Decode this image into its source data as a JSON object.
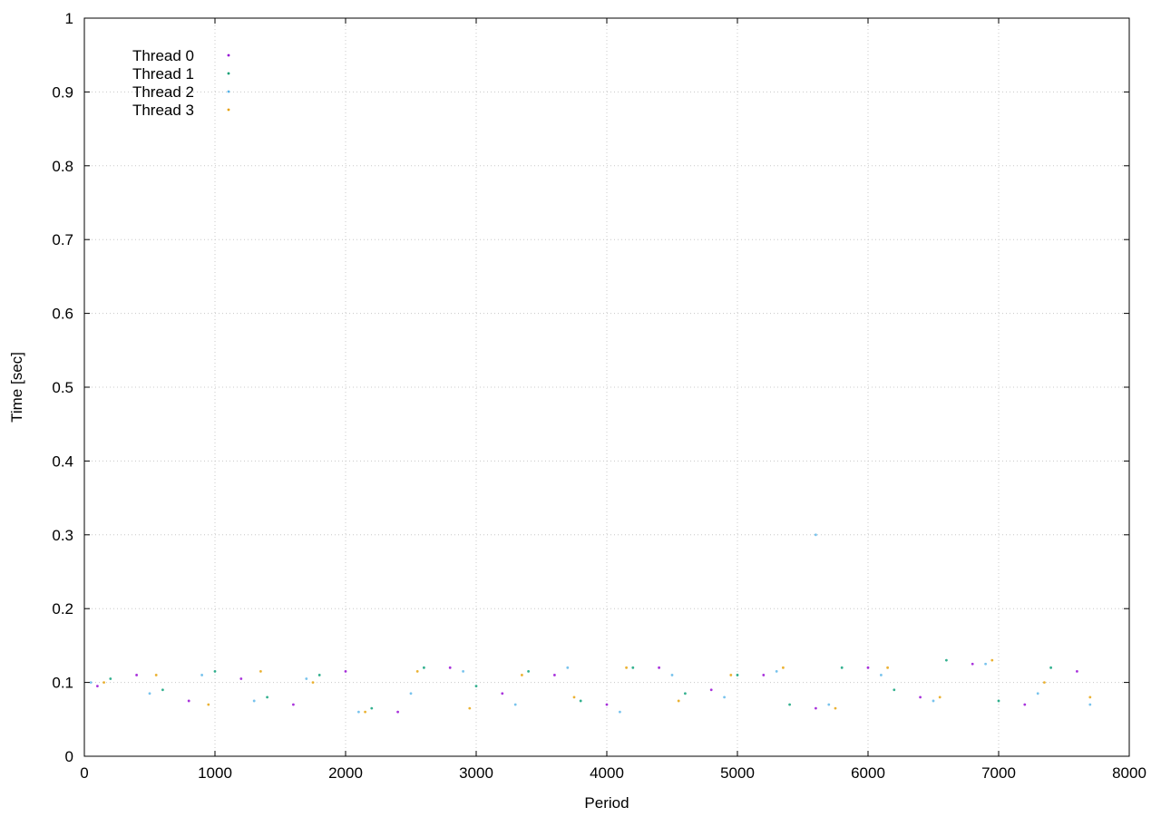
{
  "chart_data": {
    "type": "scatter",
    "title": "",
    "xlabel": "Period",
    "ylabel": "Time [sec]",
    "xlim": [
      0,
      8000
    ],
    "ylim": [
      0,
      1
    ],
    "x_ticks": [
      "0",
      "1000",
      "2000",
      "3000",
      "4000",
      "5000",
      "6000",
      "7000",
      "8000"
    ],
    "y_ticks": [
      "0",
      "0.1",
      "0.2",
      "0.3",
      "0.4",
      "0.5",
      "0.6",
      "0.7",
      "0.8",
      "0.9",
      "1"
    ],
    "grid": true,
    "legend_position": "top-left",
    "series": [
      {
        "name": "Thread 0",
        "color": "#9400d3",
        "points": [
          [
            100,
            0.095
          ],
          [
            400,
            0.11
          ],
          [
            800,
            0.075
          ],
          [
            1200,
            0.105
          ],
          [
            1600,
            0.07
          ],
          [
            2000,
            0.115
          ],
          [
            2400,
            0.06
          ],
          [
            2800,
            0.12
          ],
          [
            3200,
            0.085
          ],
          [
            3600,
            0.11
          ],
          [
            4000,
            0.07
          ],
          [
            4400,
            0.12
          ],
          [
            4800,
            0.09
          ],
          [
            5200,
            0.11
          ],
          [
            5600,
            0.065
          ],
          [
            6000,
            0.12
          ],
          [
            6400,
            0.08
          ],
          [
            6800,
            0.125
          ],
          [
            7200,
            0.07
          ],
          [
            7600,
            0.115
          ]
        ]
      },
      {
        "name": "Thread 1",
        "color": "#009e73",
        "points": [
          [
            200,
            0.105
          ],
          [
            600,
            0.09
          ],
          [
            1000,
            0.115
          ],
          [
            1400,
            0.08
          ],
          [
            1800,
            0.11
          ],
          [
            2200,
            0.065
          ],
          [
            2600,
            0.12
          ],
          [
            3000,
            0.095
          ],
          [
            3400,
            0.115
          ],
          [
            3800,
            0.075
          ],
          [
            4200,
            0.12
          ],
          [
            4600,
            0.085
          ],
          [
            5000,
            0.11
          ],
          [
            5400,
            0.07
          ],
          [
            5800,
            0.12
          ],
          [
            6200,
            0.09
          ],
          [
            6600,
            0.13
          ],
          [
            7000,
            0.075
          ],
          [
            7400,
            0.12
          ]
        ]
      },
      {
        "name": "Thread 2",
        "color": "#56b4e9",
        "points": [
          [
            50,
            0.1
          ],
          [
            500,
            0.085
          ],
          [
            900,
            0.11
          ],
          [
            1300,
            0.075
          ],
          [
            1700,
            0.105
          ],
          [
            2100,
            0.06
          ],
          [
            2500,
            0.085
          ],
          [
            2900,
            0.115
          ],
          [
            3300,
            0.07
          ],
          [
            3700,
            0.12
          ],
          [
            4100,
            0.06
          ],
          [
            4500,
            0.11
          ],
          [
            4900,
            0.08
          ],
          [
            5300,
            0.115
          ],
          [
            5600,
            0.3
          ],
          [
            5700,
            0.07
          ],
          [
            6100,
            0.11
          ],
          [
            6500,
            0.075
          ],
          [
            6900,
            0.125
          ],
          [
            7300,
            0.085
          ],
          [
            7700,
            0.07
          ]
        ]
      },
      {
        "name": "Thread 3",
        "color": "#e69f00",
        "points": [
          [
            150,
            0.1
          ],
          [
            550,
            0.11
          ],
          [
            950,
            0.07
          ],
          [
            1350,
            0.115
          ],
          [
            1750,
            0.1
          ],
          [
            2150,
            0.06
          ],
          [
            2550,
            0.115
          ],
          [
            2950,
            0.065
          ],
          [
            3350,
            0.11
          ],
          [
            3750,
            0.08
          ],
          [
            4150,
            0.12
          ],
          [
            4550,
            0.075
          ],
          [
            4950,
            0.11
          ],
          [
            5350,
            0.12
          ],
          [
            5750,
            0.065
          ],
          [
            6150,
            0.12
          ],
          [
            6550,
            0.08
          ],
          [
            6950,
            0.13
          ],
          [
            7350,
            0.1
          ],
          [
            7700,
            0.08
          ]
        ]
      }
    ]
  }
}
